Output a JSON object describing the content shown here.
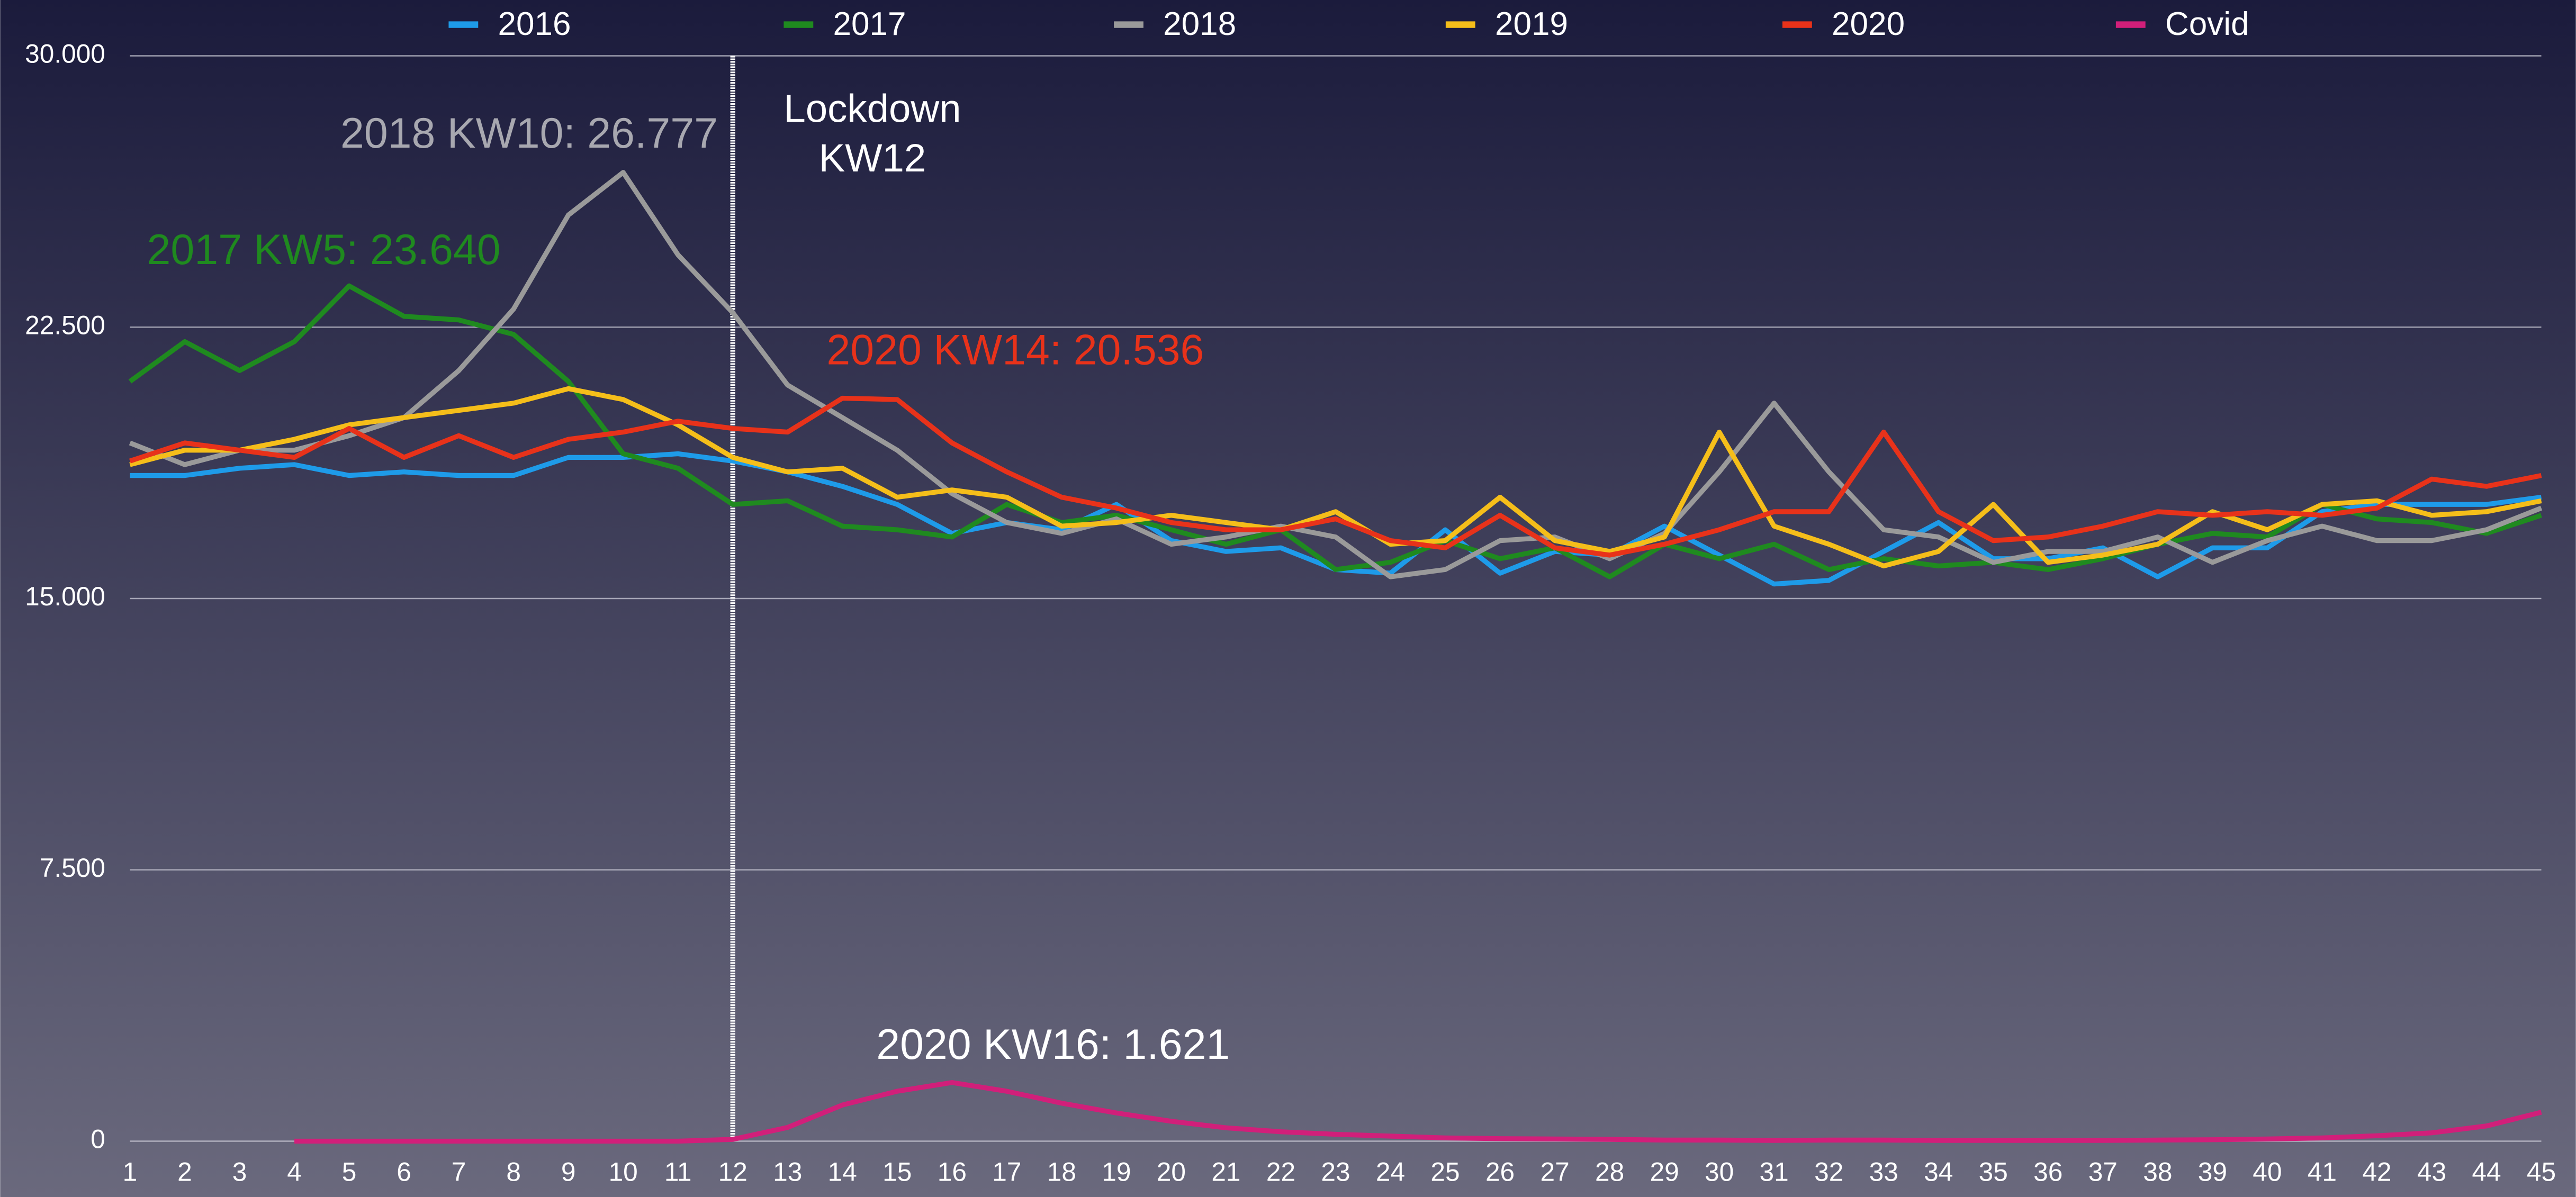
{
  "chart_data": {
    "type": "line",
    "x": [
      1,
      2,
      3,
      4,
      5,
      6,
      7,
      8,
      9,
      10,
      11,
      12,
      13,
      14,
      15,
      16,
      17,
      18,
      19,
      20,
      21,
      22,
      23,
      24,
      25,
      26,
      27,
      28,
      29,
      30,
      31,
      32,
      33,
      34,
      35,
      36,
      37,
      38,
      39,
      40,
      41,
      42,
      43,
      44,
      45
    ],
    "xlim": [
      1,
      45
    ],
    "ylim": [
      0,
      30000
    ],
    "yticks": [
      0,
      {
        "value": 7500,
        "label": "7.500"
      },
      {
        "value": 15000,
        "label": "15.000"
      },
      {
        "value": 22500,
        "label": "22.500"
      },
      {
        "value": 30000,
        "label": "30.000"
      }
    ],
    "grid": true,
    "legend": "top",
    "series": [
      {
        "name": "2016",
        "color": "#1e9be9",
        "values": [
          18400,
          18400,
          18600,
          18700,
          18400,
          18500,
          18400,
          18400,
          18900,
          18900,
          19000,
          18800,
          18500,
          18100,
          17600,
          16800,
          17100,
          16900,
          17600,
          16600,
          16300,
          16400,
          15800,
          15700,
          16900,
          15700,
          16300,
          16200,
          17000,
          16200,
          15400,
          15500,
          16300,
          17100,
          16100,
          16100,
          16400,
          15600,
          16400,
          16400,
          17400,
          17600,
          17600,
          17600,
          17800
        ]
      },
      {
        "name": "2017",
        "color": "#1f8a1f",
        "values": [
          21000,
          22100,
          21300,
          22100,
          23640,
          22800,
          22700,
          22300,
          21000,
          19000,
          18600,
          17600,
          17700,
          17000,
          16900,
          16700,
          17600,
          17100,
          17300,
          16900,
          16500,
          16900,
          15800,
          16000,
          16600,
          16100,
          16400,
          15600,
          16500,
          16100,
          16500,
          15800,
          16100,
          15900,
          16000,
          15800,
          16100,
          16500,
          16800,
          16700,
          17600,
          17200,
          17100,
          16800,
          17300
        ]
      },
      {
        "name": "2018",
        "color": "#9a9a9a",
        "values": [
          19300,
          18700,
          19100,
          19100,
          19500,
          20000,
          21300,
          23000,
          25600,
          26777,
          24500,
          22900,
          20900,
          20000,
          19100,
          17900,
          17100,
          16800,
          17200,
          16500,
          16700,
          17000,
          16700,
          15600,
          15800,
          16600,
          16700,
          16100,
          16800,
          18500,
          20400,
          18500,
          16900,
          16700,
          16000,
          16300,
          16300,
          16700,
          16000,
          16600,
          17000,
          16600,
          16600,
          16900,
          17500
        ]
      },
      {
        "name": "2019",
        "color": "#f5be1a",
        "values": [
          18700,
          19100,
          19100,
          19400,
          19800,
          20000,
          20200,
          20400,
          20800,
          20500,
          19800,
          18900,
          18500,
          18600,
          17800,
          18000,
          17800,
          17000,
          17100,
          17300,
          17100,
          16900,
          17400,
          16500,
          16600,
          17800,
          16600,
          16300,
          16700,
          19600,
          17000,
          16500,
          15900,
          16300,
          17600,
          16000,
          16200,
          16500,
          17400,
          16900,
          17600,
          17700,
          17300,
          17400,
          17700
        ]
      },
      {
        "name": "2020",
        "color": "#e8321a",
        "values": [
          18800,
          19300,
          19100,
          18900,
          19700,
          18900,
          19500,
          18900,
          19400,
          19600,
          19900,
          19700,
          19600,
          20536,
          20500,
          19300,
          18500,
          17800,
          17500,
          17100,
          16900,
          16900,
          17200,
          16600,
          16400,
          17300,
          16400,
          16200,
          16500,
          16900,
          17400,
          17400,
          19600,
          17400,
          16600,
          16700,
          17000,
          17400,
          17300,
          17400,
          17300,
          17500,
          18300,
          18100,
          18400
        ]
      },
      {
        "name": "Covid",
        "color": "#d11f7a",
        "values": [
          null,
          null,
          null,
          0,
          0,
          0,
          0,
          0,
          0,
          0,
          0,
          50,
          380,
          1000,
          1380,
          1621,
          1380,
          1050,
          780,
          550,
          370,
          260,
          190,
          140,
          90,
          70,
          60,
          50,
          30,
          30,
          20,
          30,
          30,
          20,
          20,
          20,
          20,
          30,
          40,
          60,
          90,
          150,
          230,
          420,
          800
        ]
      }
    ],
    "lockdown": {
      "x": 12,
      "label": [
        "Lockdown",
        "KW12"
      ]
    },
    "annotations": [
      {
        "text": "2018 KW10: 26.777",
        "color": "#a8a8b0"
      },
      {
        "text": "2017 KW5: 23.640",
        "color": "#1f8a1f"
      },
      {
        "text": "2020 KW14: 20.536",
        "color": "#e8321a"
      },
      {
        "text": "2020 KW16: 1.621",
        "color": "#ffffff"
      }
    ]
  }
}
